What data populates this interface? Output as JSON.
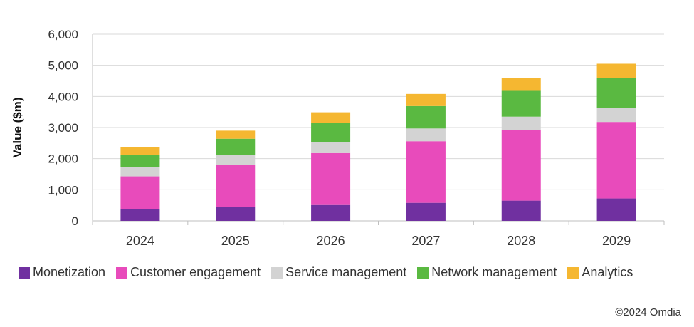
{
  "chart_data": {
    "type": "bar",
    "stacked": true,
    "categories": [
      "2024",
      "2025",
      "2026",
      "2027",
      "2028",
      "2029"
    ],
    "series": [
      {
        "name": "Monetization",
        "color": "#7030a0",
        "values": [
          370,
          440,
          510,
          580,
          650,
          720
        ]
      },
      {
        "name": "Customer engagement",
        "color": "#e84bbb",
        "values": [
          1060,
          1360,
          1670,
          1980,
          2270,
          2460
        ]
      },
      {
        "name": "Service management",
        "color": "#d3d3d3",
        "values": [
          300,
          320,
          360,
          410,
          430,
          460
        ]
      },
      {
        "name": "Network management",
        "color": "#5ab941",
        "values": [
          400,
          520,
          610,
          720,
          830,
          950
        ]
      },
      {
        "name": "Analytics",
        "color": "#f5b731",
        "values": [
          230,
          260,
          340,
          390,
          420,
          460
        ]
      }
    ],
    "ylabel": "Value ($m)",
    "ylim": [
      0,
      6000
    ],
    "yticks": [
      "0",
      "1,000",
      "2,000",
      "3,000",
      "4,000",
      "5,000",
      "6,000"
    ],
    "grid": true,
    "legend": "bottom"
  },
  "footer": {
    "copyright": "©2024 Omdia"
  }
}
